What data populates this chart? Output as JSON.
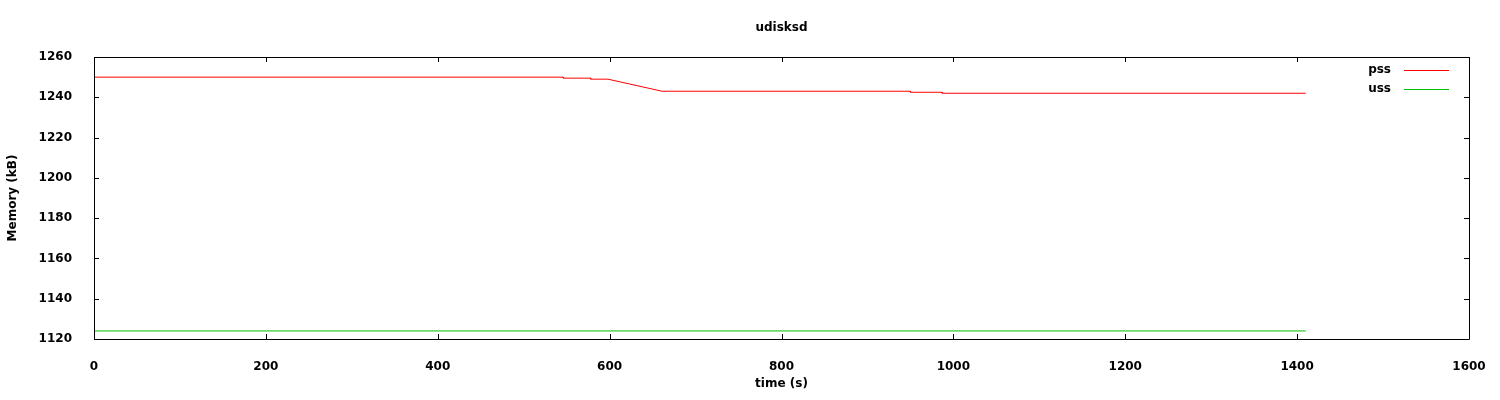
{
  "chart_data": {
    "type": "line",
    "title": "udisksd",
    "xlabel": "time (s)",
    "ylabel": "Memory (kB)",
    "xlim": [
      0,
      1600
    ],
    "xticks": [
      0,
      200,
      400,
      600,
      800,
      1000,
      1200,
      1400,
      1600
    ],
    "ylim": [
      1120,
      1260
    ],
    "yticks": [
      1120,
      1140,
      1160,
      1180,
      1200,
      1220,
      1240,
      1260
    ],
    "grid": false,
    "legend": "top right",
    "marker": "none",
    "series": [
      {
        "name": "pss",
        "color": "#ff0000",
        "x": [
          0,
          546,
          546,
          578,
          578,
          598,
          661,
          950,
          950,
          987,
          987,
          1410
        ],
        "values": [
          1250,
          1250,
          1249.5,
          1249.5,
          1249,
          1249,
          1243,
          1243,
          1242.5,
          1242.5,
          1242,
          1242
        ]
      },
      {
        "name": "uss",
        "color": "#00c000",
        "x": [
          0,
          1410
        ],
        "values": [
          1124,
          1124
        ]
      }
    ]
  }
}
